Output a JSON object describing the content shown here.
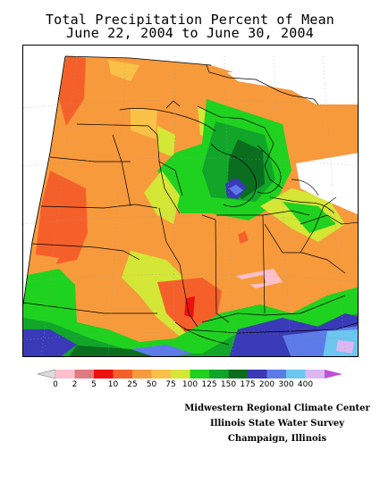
{
  "title": {
    "line1": "Total Precipitation Percent of Mean",
    "line2": "June 22, 2004 to June 30, 2004"
  },
  "legend": {
    "bins": [
      {
        "label": "0",
        "color": "#ffc0cb"
      },
      {
        "label": "2",
        "color": "#e07a80"
      },
      {
        "label": "5",
        "color": "#ee1111"
      },
      {
        "label": "10",
        "color": "#f5602a"
      },
      {
        "label": "25",
        "color": "#f79a3c"
      },
      {
        "label": "50",
        "color": "#f9c247"
      },
      {
        "label": "75",
        "color": "#d4e636"
      },
      {
        "label": "100",
        "color": "#1fd21f"
      },
      {
        "label": "125",
        "color": "#11a62a"
      },
      {
        "label": "150",
        "color": "#0a6e1e"
      },
      {
        "label": "175",
        "color": "#3a3ab8"
      },
      {
        "label": "200",
        "color": "#5c7be8"
      },
      {
        "label": "300",
        "color": "#6cc6f0"
      },
      {
        "label": "400",
        "color": "#dcb7f3"
      }
    ],
    "left_arrow_color": "#dddddd",
    "right_arrow_color": "#c050d8"
  },
  "credits": {
    "line1": "Midwestern Regional Climate Center",
    "line2": "Illinois State Water Survey",
    "line3": "Champaign, Illinois"
  }
}
